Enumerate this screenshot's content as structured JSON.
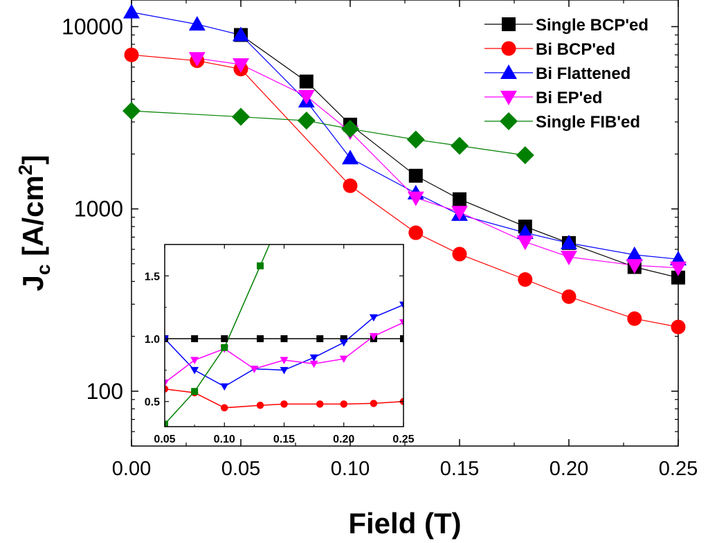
{
  "chart_data": [
    {
      "type": "line",
      "title": "",
      "xlabel": "Field (T)",
      "ylabel": {
        "main": "J",
        "sub": "c",
        "unit_pre": " [A/cm",
        "unit_sup": "2",
        "unit_post": "]"
      },
      "xlim": [
        0,
        0.25
      ],
      "ylim": [
        50,
        14000
      ],
      "yscale": "log",
      "grid": false,
      "legend_position": "top-right",
      "x_ticks": [
        0.0,
        0.05,
        0.1,
        0.15,
        0.2,
        0.25
      ],
      "x_tick_labels": [
        "0.00",
        "0.05",
        "0.10",
        "0.15",
        "0.20",
        "0.25"
      ],
      "y_ticks": [
        100,
        1000,
        10000
      ],
      "y_tick_labels": [
        "100",
        "1000",
        "10000"
      ],
      "series": [
        {
          "name": "Single BCP'ed",
          "color": "#000000",
          "marker": "square",
          "x": [
            0.05,
            0.08,
            0.1,
            0.13,
            0.15,
            0.18,
            0.2,
            0.23,
            0.25
          ],
          "y": [
            9000,
            5000,
            2900,
            1520,
            1130,
            800,
            650,
            480,
            420
          ]
        },
        {
          "name": "Bi BCP'ed",
          "color": "#ff0000",
          "marker": "circle",
          "x": [
            0.0,
            0.03,
            0.05,
            0.1,
            0.13,
            0.15,
            0.18,
            0.2,
            0.23,
            0.25
          ],
          "y": [
            7000,
            6500,
            5850,
            1340,
            740,
            565,
            410,
            330,
            250,
            225
          ]
        },
        {
          "name": "Bi Flattened",
          "color": "#0000ff",
          "marker": "triangle-up",
          "x": [
            0.0,
            0.03,
            0.05,
            0.08,
            0.1,
            0.13,
            0.15,
            0.18,
            0.2,
            0.23,
            0.25
          ],
          "y": [
            12000,
            10300,
            9000,
            3900,
            1900,
            1220,
            930,
            740,
            650,
            560,
            530
          ]
        },
        {
          "name": "Bi EP'ed",
          "color": "#ff00ff",
          "marker": "triangle-down",
          "x": [
            0.03,
            0.05,
            0.08,
            0.1,
            0.13,
            0.15,
            0.18,
            0.2,
            0.23,
            0.25
          ],
          "y": [
            6700,
            6200,
            4150,
            2650,
            1150,
            960,
            660,
            545,
            490,
            475
          ]
        },
        {
          "name": "Single FIB'ed",
          "color": "#008000",
          "marker": "diamond",
          "x": [
            0.0,
            0.05,
            0.08,
            0.1,
            0.13,
            0.15,
            0.18
          ],
          "y": [
            3450,
            3200,
            3050,
            2750,
            2400,
            2220,
            1970
          ]
        }
      ]
    },
    {
      "type": "line",
      "title": "",
      "xlabel": "",
      "ylabel": "",
      "xlim": [
        0.05,
        0.25
      ],
      "ylim": [
        0.3,
        1.75
      ],
      "grid": false,
      "x_ticks": [
        0.05,
        0.1,
        0.15,
        0.2,
        0.25
      ],
      "x_tick_labels": [
        "0.05",
        "0.10",
        "0.15",
        "0.20",
        "0.25"
      ],
      "y_ticks": [
        0.5,
        1.0,
        1.5
      ],
      "y_tick_labels": [
        "0.5",
        "1.0",
        "1.5"
      ],
      "series": [
        {
          "color": "#000000",
          "marker": "square",
          "x": [
            0.05,
            0.075,
            0.1,
            0.13,
            0.15,
            0.18,
            0.2,
            0.225,
            0.25
          ],
          "y": [
            1.0,
            1.0,
            1.0,
            1.0,
            1.0,
            1.0,
            1.0,
            1.0,
            1.0
          ]
        },
        {
          "color": "#ff0000",
          "marker": "circle",
          "x": [
            0.05,
            0.075,
            0.1,
            0.13,
            0.15,
            0.18,
            0.2,
            0.225,
            0.25
          ],
          "y": [
            0.6,
            0.57,
            0.45,
            0.47,
            0.48,
            0.48,
            0.48,
            0.485,
            0.5
          ]
        },
        {
          "color": "#0000ff",
          "marker": "triangle-down",
          "x": [
            0.05,
            0.075,
            0.1,
            0.125,
            0.15,
            0.175,
            0.2,
            0.225,
            0.25
          ],
          "y": [
            1.0,
            0.75,
            0.62,
            0.76,
            0.75,
            0.85,
            0.97,
            1.17,
            1.27
          ]
        },
        {
          "color": "#ff00ff",
          "marker": "triangle-down",
          "x": [
            0.05,
            0.075,
            0.1,
            0.125,
            0.15,
            0.175,
            0.2,
            0.225,
            0.25
          ],
          "y": [
            0.65,
            0.83,
            0.92,
            0.76,
            0.83,
            0.8,
            0.84,
            1.02,
            1.13
          ]
        },
        {
          "color": "#008000",
          "marker": "square",
          "x": [
            0.05,
            0.075,
            0.1,
            0.13,
            0.14
          ],
          "y": [
            0.32,
            0.58,
            0.93,
            1.58,
            1.8
          ]
        }
      ]
    }
  ]
}
